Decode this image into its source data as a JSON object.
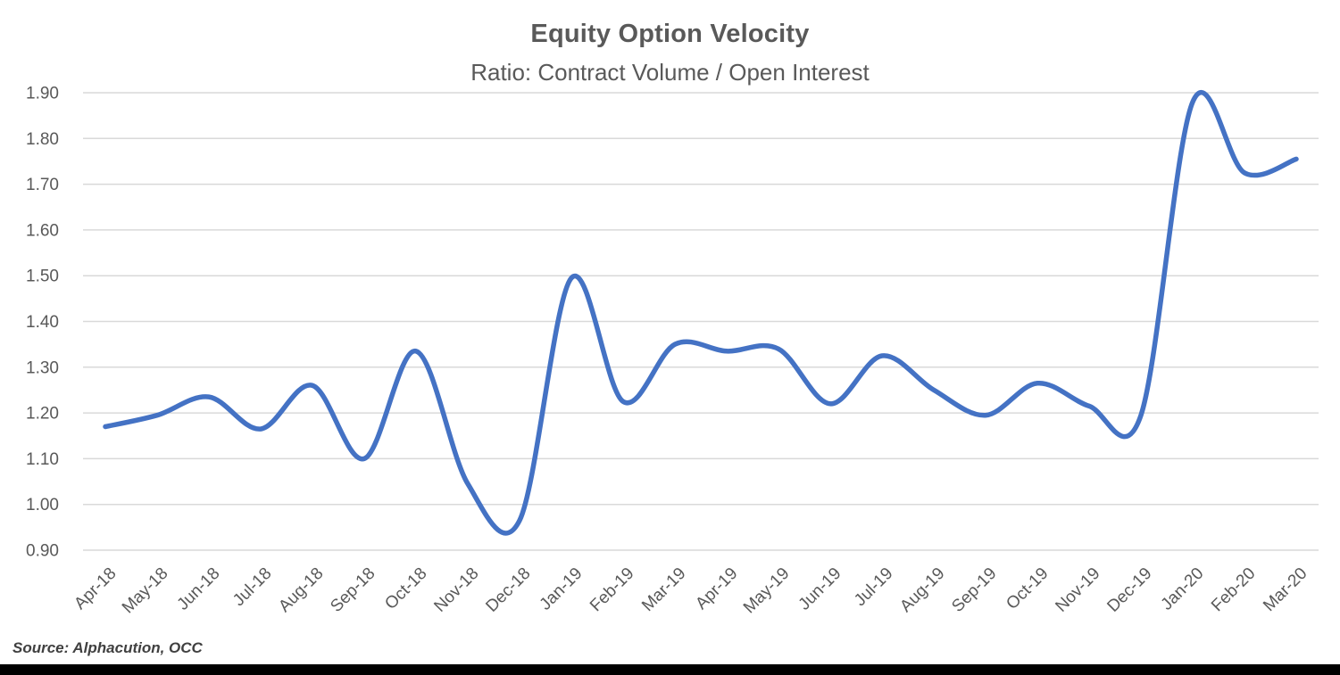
{
  "chart_data": {
    "type": "line",
    "title": "Equity Option Velocity",
    "subtitle": "Ratio: Contract Volume / Open Interest",
    "source": "Source: Alphacution, OCC",
    "categories": [
      "Apr-18",
      "May-18",
      "Jun-18",
      "Jul-18",
      "Aug-18",
      "Sep-18",
      "Oct-18",
      "Nov-18",
      "Dec-18",
      "Jan-19",
      "Feb-19",
      "Mar-19",
      "Apr-19",
      "May-19",
      "Jun-19",
      "Jul-19",
      "Aug-19",
      "Sep-19",
      "Oct-19",
      "Nov-19",
      "Dec-19",
      "Jan-20",
      "Feb-20",
      "Mar-20"
    ],
    "series": [
      {
        "name": "Equity Option Velocity (Contract Volume / Open Interest)",
        "values": [
          1.17,
          1.195,
          1.235,
          1.165,
          1.26,
          1.1,
          1.335,
          1.045,
          0.965,
          1.495,
          1.225,
          1.35,
          1.335,
          1.34,
          1.22,
          1.325,
          1.25,
          1.195,
          1.265,
          1.215,
          1.195,
          1.88,
          1.725,
          1.755
        ]
      }
    ],
    "ylim": [
      0.9,
      1.9
    ],
    "ytick_step": 0.1,
    "ytick_labels": [
      "1.90",
      "1.80",
      "1.70",
      "1.60",
      "1.50",
      "1.40",
      "1.30",
      "1.20",
      "1.10",
      "1.00",
      "0.90"
    ],
    "grid": "horizontal-only",
    "legend_position": "none",
    "line_smoothing": true,
    "xtick_rotation_deg": 45,
    "colors": {
      "line": "#4472C4",
      "grid": "#D9D9D9",
      "axis_text": "#595959",
      "title_text": "#595959",
      "source_text": "#404040",
      "bottom_band": "#000000",
      "background": "#FFFFFF"
    }
  }
}
